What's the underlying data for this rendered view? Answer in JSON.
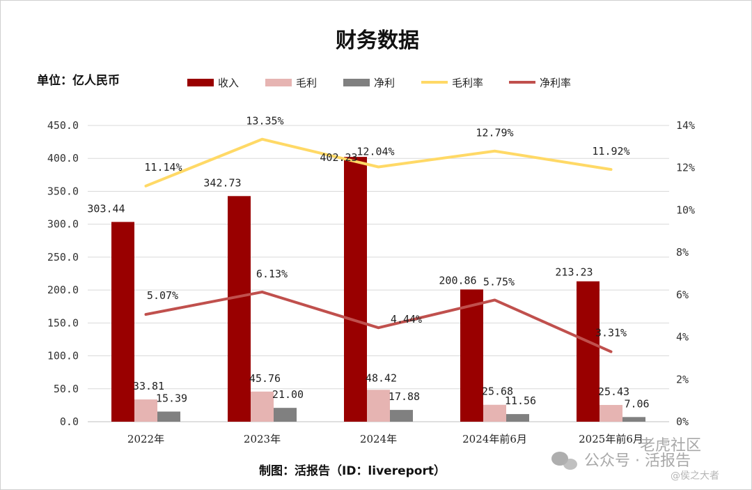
{
  "title": "财务数据",
  "unit_label": "单位：亿人民币",
  "credit": "制图：活报告（ID：livereport）",
  "watermark": {
    "line1": "老虎社区",
    "line2": "公众号 · 活报告",
    "line3": "@侯之大者"
  },
  "colors": {
    "revenue": "#990000",
    "gross_profit": "#e6b4b2",
    "net_profit": "#808080",
    "gross_margin": "#ffd966",
    "net_margin": "#c0504d",
    "grid": "#d9d9d9"
  },
  "chart_data": {
    "type": "bar",
    "title": "财务数据",
    "unit": "单位：亿人民币",
    "categories": [
      "2022年",
      "2023年",
      "2024年",
      "2024年前6月",
      "2025年前6月"
    ],
    "ylim": [
      0,
      450
    ],
    "yticks": [
      0,
      50,
      100,
      150,
      200,
      250,
      300,
      350,
      400,
      450
    ],
    "ytick_labels": [
      "0.0",
      "50.0",
      "100.0",
      "150.0",
      "200.0",
      "250.0",
      "300.0",
      "350.0",
      "400.0",
      "450.0"
    ],
    "y2lim": [
      0,
      14
    ],
    "y2ticks": [
      0,
      2,
      4,
      6,
      8,
      10,
      12,
      14
    ],
    "y2tick_labels": [
      "0%",
      "2%",
      "4%",
      "6%",
      "8%",
      "10%",
      "12%",
      "14%"
    ],
    "grid": true,
    "legend_position": "top",
    "bar_series": [
      {
        "name": "收入",
        "values": [
          303.44,
          342.73,
          402.23,
          200.86,
          213.23
        ],
        "labels": [
          "303.44",
          "342.73",
          "402.23",
          "200.86",
          "213.23"
        ]
      },
      {
        "name": "毛利",
        "values": [
          33.81,
          45.76,
          48.42,
          25.68,
          25.43
        ],
        "labels": [
          "33.81",
          "45.76",
          "48.42",
          "25.68",
          "25.43"
        ]
      },
      {
        "name": "净利",
        "values": [
          15.39,
          21.0,
          17.88,
          11.56,
          7.06
        ],
        "labels": [
          "15.39",
          "21.00",
          "17.88",
          "11.56",
          "7.06"
        ]
      }
    ],
    "line_series": [
      {
        "name": "毛利率",
        "axis": "right",
        "values": [
          11.14,
          13.35,
          12.04,
          12.79,
          11.92
        ],
        "labels": [
          "11.14%",
          "13.35%",
          "12.04%",
          "12.79%",
          "11.92%"
        ]
      },
      {
        "name": "净利率",
        "axis": "right",
        "values": [
          5.07,
          6.13,
          4.44,
          5.75,
          3.31
        ],
        "labels": [
          "5.07%",
          "6.13%",
          "4.44%",
          "5.75%",
          "3.31%"
        ]
      }
    ]
  }
}
